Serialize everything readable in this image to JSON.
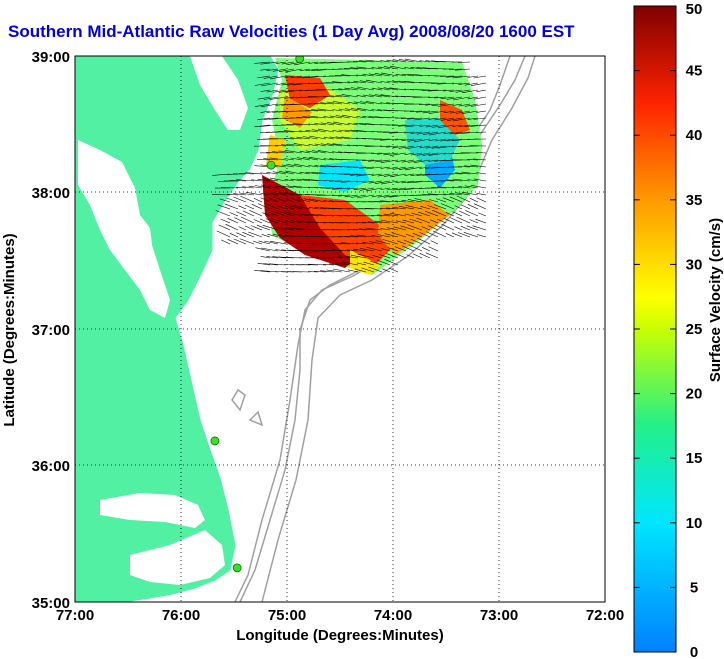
{
  "title": "Southern Mid-Atlantic Raw Velocities (1 Day Avg) 2008/08/20 1600 EST",
  "map": {
    "xlabel": "Longitude (Degrees:Minutes)",
    "ylabel": "Latitude (Degrees:Minutes)",
    "x_ticks": [
      "77:00",
      "76:00",
      "75:00",
      "74:00",
      "73:00",
      "72:00"
    ],
    "y_ticks": [
      "39:00",
      "38:00",
      "37:00",
      "36:00",
      "35:00"
    ],
    "colors": {
      "land": "#52f0a3",
      "water": "#ffffff",
      "bathymetry": "#a0a0a0",
      "station": "#31e61f"
    }
  },
  "colorbar": {
    "label": "Surface Velocity (cm/s)",
    "ticks": [
      "0",
      "5",
      "10",
      "15",
      "20",
      "25",
      "30",
      "35",
      "40",
      "45",
      "50"
    ],
    "min": 0,
    "max": 50
  },
  "chart_data": {
    "type": "heatmap",
    "xlim": [
      -77,
      -72
    ],
    "ylim": [
      35,
      39
    ],
    "value_range": [
      0,
      50
    ],
    "stations": [
      {
        "lon": -74.88,
        "lat": 38.98
      },
      {
        "lon": -75.15,
        "lat": 38.2
      },
      {
        "lon": -75.68,
        "lat": 36.18
      },
      {
        "lon": -75.47,
        "lat": 35.25
      }
    ]
  }
}
